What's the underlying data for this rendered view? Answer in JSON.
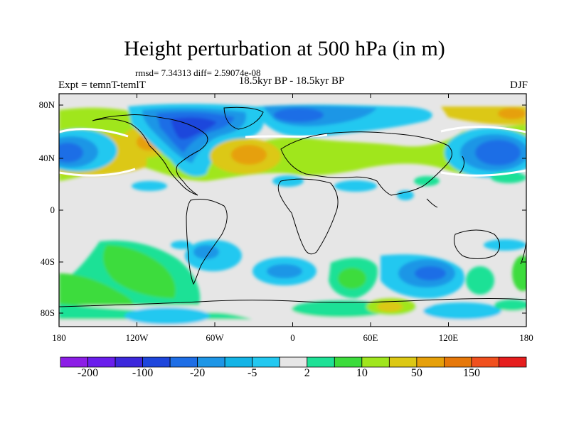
{
  "title": "Height perturbation at 500 hPa (in m)",
  "stats": "rmsd= 7.34313 diff= 2.59074e-08",
  "left_label": "Expt = temnT-temlT",
  "center_label": "18.5kyr BP - 18.5kyr BP",
  "right_label": "DJF",
  "lat_ticks": [
    "80N",
    "40N",
    "0",
    "40S",
    "80S"
  ],
  "lon_ticks": [
    "180",
    "120W",
    "60W",
    "0",
    "60E",
    "120E",
    "180"
  ],
  "colorbar": {
    "colors": [
      "#8c1ee6",
      "#6a1eec",
      "#3c28dc",
      "#1e46dc",
      "#1e6ee6",
      "#1e96e6",
      "#14b4e6",
      "#23c8f0",
      "#e6e6e6",
      "#1ee196",
      "#3cdc3c",
      "#a0e61e",
      "#dcc814",
      "#e6a00a",
      "#e6780a",
      "#f0501e",
      "#e61e1e"
    ],
    "labels": [
      "-200",
      "-100",
      "-20",
      "-5",
      "2",
      "10",
      "50",
      "150"
    ]
  },
  "contour_colors": {
    "background": "#e6e6e6",
    "neg1": "#23c8f0",
    "neg2": "#1e96e6",
    "neg3": "#1e6ee6",
    "neg4": "#1e46dc",
    "pos1": "#1ee196",
    "pos2": "#3cdc3c",
    "pos3": "#a0e61e",
    "pos4": "#dcc814",
    "pos5": "#e6a00a"
  }
}
